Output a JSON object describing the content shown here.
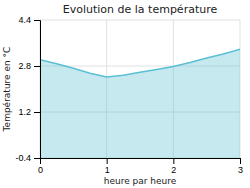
{
  "chart_data": {
    "type": "area",
    "title": "Evolution de la température",
    "xlabel": "heure par heure",
    "ylabel": "Température en °C",
    "x": [
      0,
      0.25,
      0.5,
      0.75,
      1.0,
      1.25,
      1.5,
      1.75,
      2.0,
      2.25,
      2.5,
      2.75,
      3.0
    ],
    "values": [
      3.02,
      2.88,
      2.72,
      2.55,
      2.42,
      2.48,
      2.58,
      2.68,
      2.78,
      2.92,
      3.08,
      3.22,
      3.38
    ],
    "color": "#5bbfd4",
    "xlim": [
      0,
      3
    ],
    "ylim": [
      -0.4,
      4.4
    ],
    "xticks": [
      0,
      1,
      2,
      3
    ],
    "yticks": [
      -0.4,
      1.2,
      2.8,
      4.4
    ],
    "grid": true
  }
}
